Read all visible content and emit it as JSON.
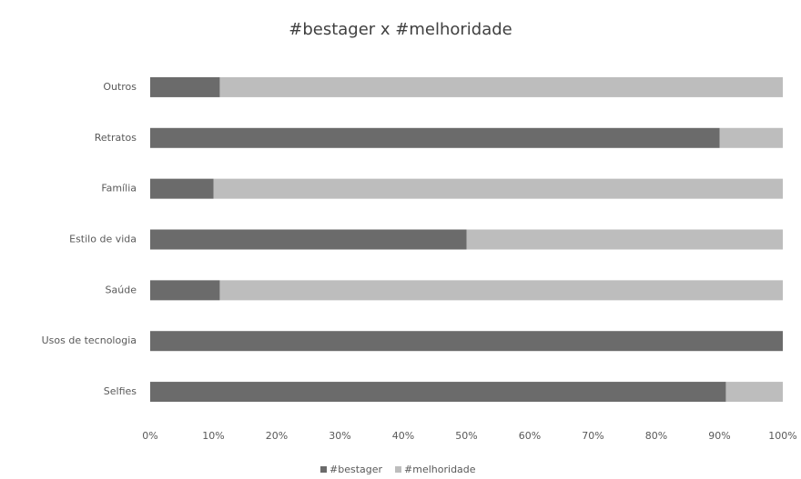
{
  "chart_data": {
    "type": "stacked_bar_horizontal",
    "title": "#bestager x #melhoridade",
    "categories": [
      "Outros",
      "Retratos",
      "Família",
      "Estilo de vida",
      "Saúde",
      "Usos de tecnologia",
      "Selfies"
    ],
    "series": [
      {
        "name": "#bestager",
        "color": "#6b6b6b",
        "values": [
          11,
          90,
          10,
          50,
          11,
          100,
          91
        ]
      },
      {
        "name": "#melhoridade",
        "color": "#bdbdbd",
        "values": [
          89,
          10,
          90,
          50,
          89,
          0,
          9
        ]
      }
    ],
    "xlim": [
      0,
      100
    ],
    "xticks": [
      {
        "value": 0,
        "label": "0%"
      },
      {
        "value": 10,
        "label": "10%"
      },
      {
        "value": 20,
        "label": "20%"
      },
      {
        "value": 30,
        "label": "30%"
      },
      {
        "value": 40,
        "label": "40%"
      },
      {
        "value": 50,
        "label": "50%"
      },
      {
        "value": 60,
        "label": "60%"
      },
      {
        "value": 70,
        "label": "70%"
      },
      {
        "value": 80,
        "label": "80%"
      },
      {
        "value": 90,
        "label": "90%"
      },
      {
        "value": 100,
        "label": "100%"
      }
    ],
    "grid": false,
    "legend": "bottom"
  }
}
